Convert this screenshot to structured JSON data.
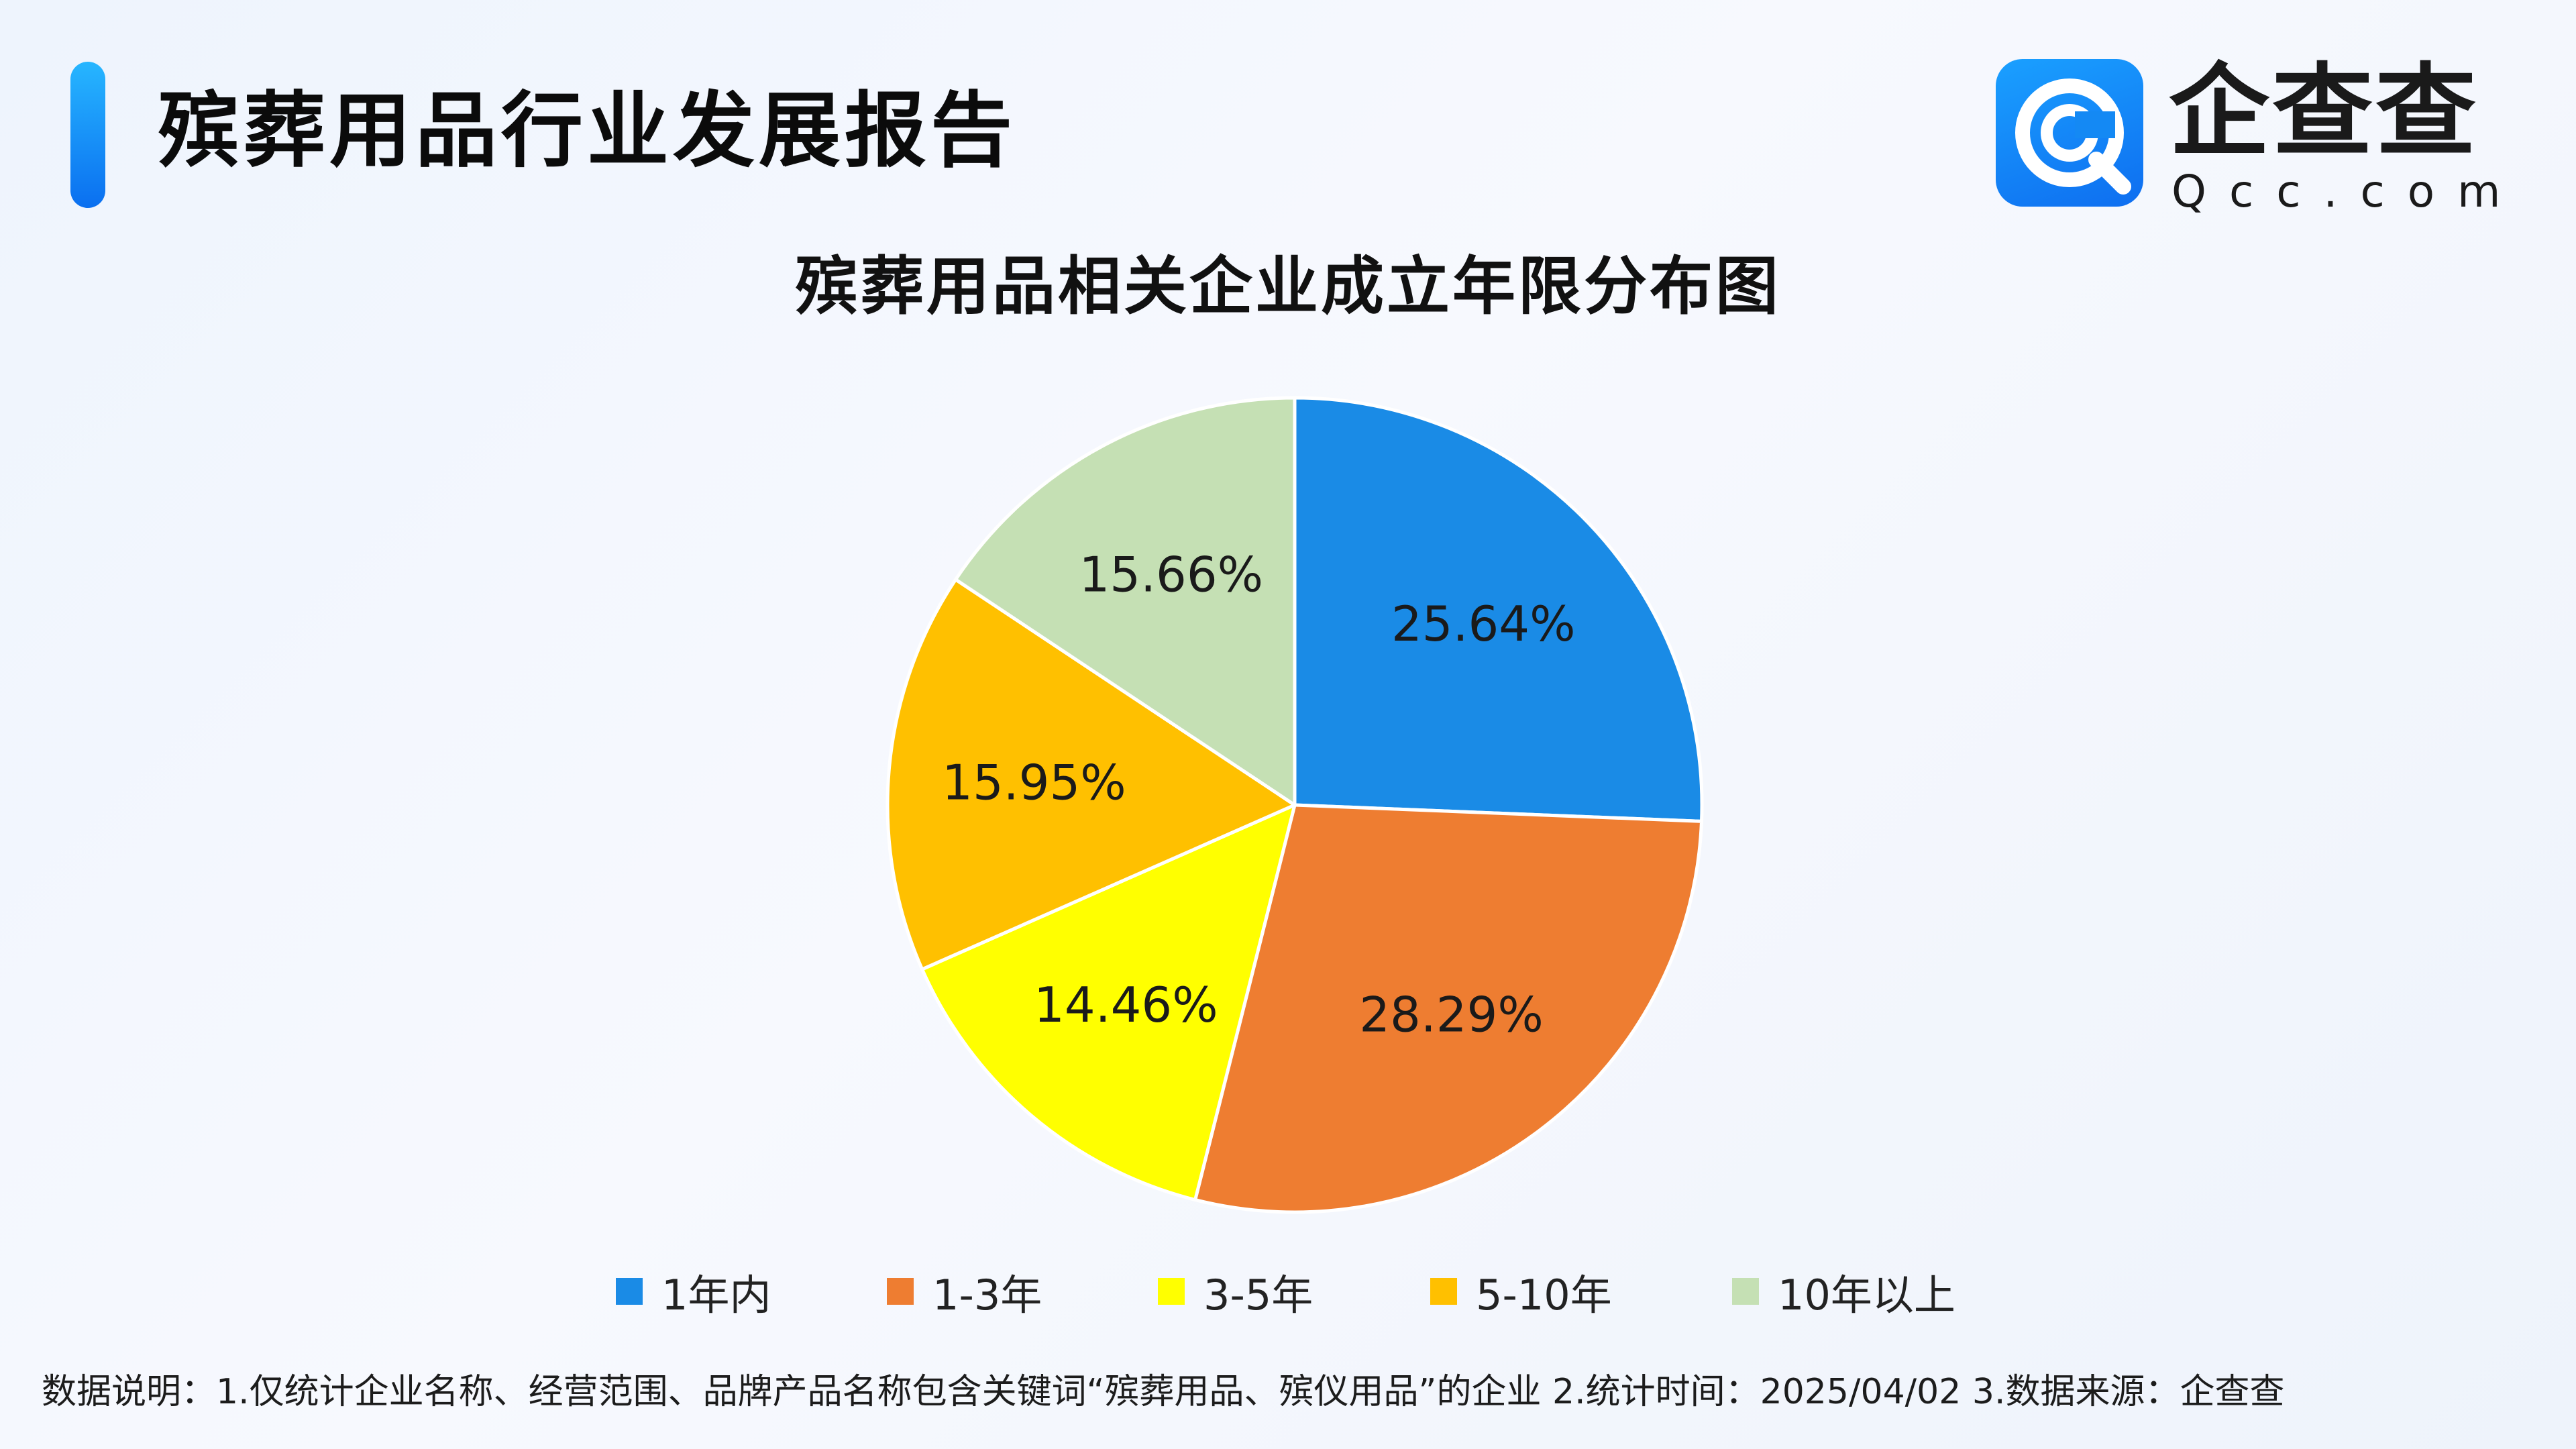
{
  "header": {
    "report_title": "殡葬用品行业发展报告"
  },
  "logo": {
    "name": "企查查",
    "domain": "Qcc.com",
    "icon": "qcc-logo-icon",
    "colors": [
      "#1aa0ff",
      "#0e6ef0"
    ]
  },
  "chart_data": {
    "type": "pie",
    "title": "殡葬用品相关企业成立年限分布图",
    "start_angle": "12 o'clock, clockwise",
    "legend_position": "bottom",
    "slices": [
      {
        "label": "1年内",
        "value": 25.64,
        "value_label": "25.64%",
        "color": "#1a8be6"
      },
      {
        "label": "1-3年",
        "value": 28.29,
        "value_label": "28.29%",
        "color": "#ee7d31"
      },
      {
        "label": "3-5年",
        "value": 14.46,
        "value_label": "14.46%",
        "color": "#ffff00"
      },
      {
        "label": "5-10年",
        "value": 15.95,
        "value_label": "15.95%",
        "color": "#ffc000"
      },
      {
        "label": "10年以上",
        "value": 15.66,
        "value_label": "15.66%",
        "color": "#c5e0b4"
      }
    ]
  },
  "footnote": "数据说明：1.仅统计企业名称、经营范围、品牌产品名称包含关键词“殡葬用品、殡仪用品”的企业   2.统计时间：2025/04/02    3.数据来源：企查查"
}
